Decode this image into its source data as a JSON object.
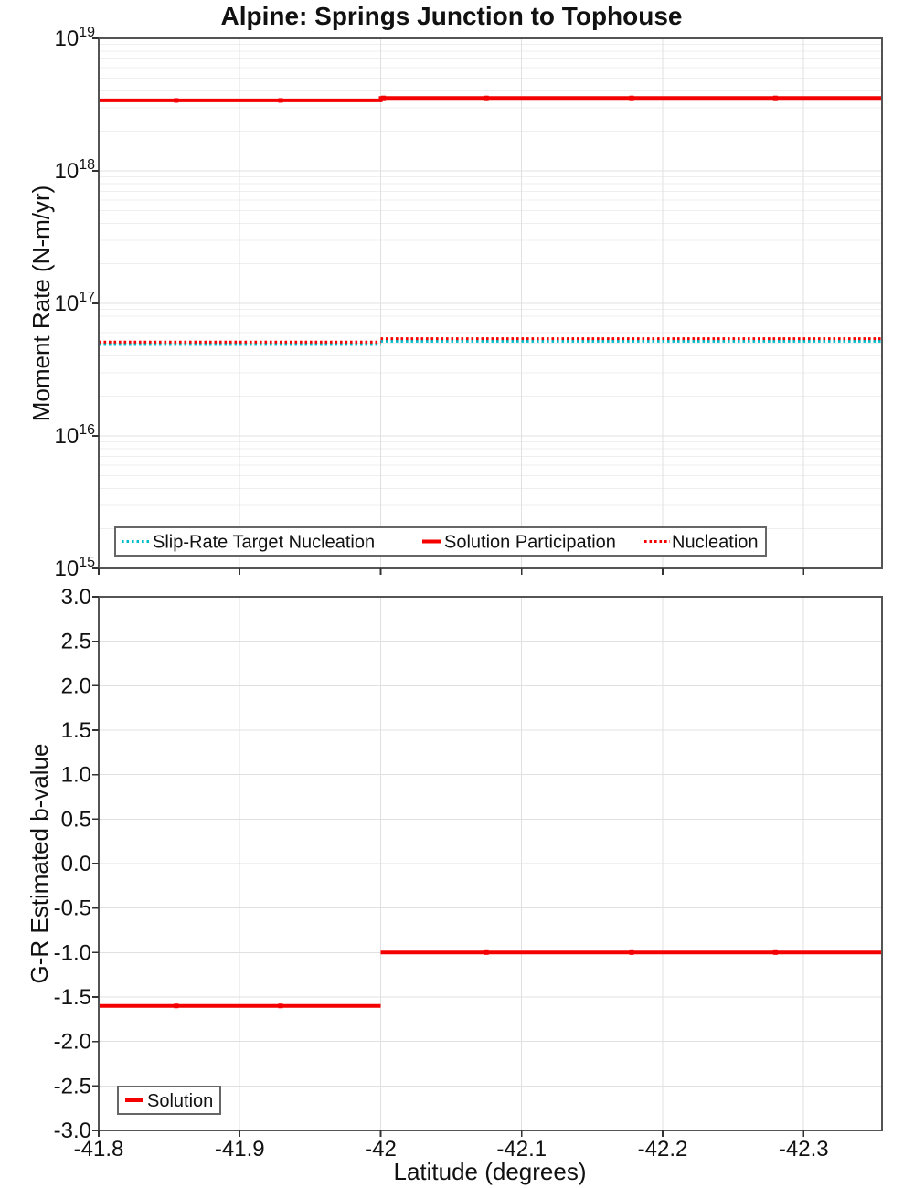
{
  "chart_data": {
    "title": "Alpine: Springs Junction to Tophouse",
    "xaxis": {
      "label": "Latitude (degrees)",
      "lim": [
        -41.8,
        -42.3556
      ],
      "ticks": {
        "values": [
          -41.8,
          -41.9,
          -42.0,
          -42.1,
          -42.2,
          -42.3
        ],
        "labels": [
          "-41.8",
          "-41.9",
          "-42",
          "-42.1",
          "-42.2",
          "-42.3"
        ]
      },
      "inverted": true
    },
    "colors": {
      "red": "#f40000",
      "cyan": "#00bcc8",
      "grid_minor": "#efefef",
      "grid_major": "#e0e0e0",
      "border": "#545454",
      "legend_border": "#666666"
    },
    "charts": [
      {
        "type": "line",
        "ylabel": "Moment Rate (N-m/yr)",
        "yscale": "log",
        "ylim_exp": [
          15,
          19
        ],
        "ytick_base": "10",
        "ytick_exps": [
          19,
          18,
          17,
          16,
          15
        ],
        "grid_minor": true,
        "series": [
          {
            "name": "Slip-Rate Target Nucleation",
            "color": "#00bcc8",
            "dash": "dotted",
            "width": 3,
            "offset": 1.4,
            "segments": [
              [
                [
                  -41.8,
                  5e+16
                ],
                [
                  -42.0,
                  5e+16
                ]
              ],
              [
                [
                  -42.0,
                  5.3e+16
                ],
                [
                  -42.3556,
                  5.3e+16
                ]
              ]
            ],
            "markers": []
          },
          {
            "name": "Nucleation",
            "color": "#f40000",
            "dash": "dotted",
            "width": 3,
            "offset": -1.4,
            "segments": [
              [
                [
                  -41.8,
                  5e+16
                ],
                [
                  -42.0,
                  5e+16
                ]
              ],
              [
                [
                  -42.0,
                  5.3e+16
                ],
                [
                  -42.3556,
                  5.3e+16
                ]
              ]
            ],
            "markers": []
          },
          {
            "name": "Solution Participation",
            "color": "#f40000",
            "dash": "solid",
            "width": 4,
            "offset": 0,
            "segments": [
              [
                [
                  -41.8,
                  3.4e+18
                ],
                [
                  -42.0,
                  3.4e+18
                ],
                [
                  -42.0,
                  3.55e+18
                ],
                [
                  -42.3556,
                  3.55e+18
                ]
              ]
            ],
            "markers": [
              [
                -41.855,
                3.4e+18
              ],
              [
                -41.929,
                3.4e+18
              ],
              [
                -42.002,
                3.55e+18
              ],
              [
                -42.075,
                3.55e+18
              ],
              [
                -42.178,
                3.55e+18
              ],
              [
                -42.28,
                3.55e+18
              ]
            ]
          }
        ],
        "legend": [
          "Slip-Rate Target Nucleation",
          "Solution Participation",
          "Nucleation"
        ]
      },
      {
        "type": "line",
        "ylabel": "G-R Estimated b-value",
        "yscale": "linear",
        "ylim": [
          -3.0,
          3.0
        ],
        "grid_minor": false,
        "yticks": {
          "values": [
            3.0,
            2.5,
            2.0,
            1.5,
            1.0,
            0.5,
            0.0,
            -0.5,
            -1.0,
            -1.5,
            -2.0,
            -2.5,
            -3.0
          ],
          "labels": [
            "3.0",
            "2.5",
            "2.0",
            "1.5",
            "1.0",
            "0.5",
            "0.0",
            "-0.5",
            "-1.0",
            "-1.5",
            "-2.0",
            "-2.5",
            "-3.0"
          ]
        },
        "series": [
          {
            "name": "Solution",
            "color": "#f40000",
            "dash": "solid",
            "width": 4,
            "offset": 0,
            "segments": [
              [
                [
                  -41.8,
                  -1.6
                ],
                [
                  -42.0,
                  -1.6
                ]
              ],
              [
                [
                  -42.0,
                  -1.0
                ],
                [
                  -42.3556,
                  -1.0
                ]
              ]
            ],
            "markers": [
              [
                -41.855,
                -1.6
              ],
              [
                -41.929,
                -1.6
              ],
              [
                -42.075,
                -1.0
              ],
              [
                -42.178,
                -1.0
              ],
              [
                -42.28,
                -1.0
              ]
            ]
          }
        ],
        "legend": [
          "Solution"
        ]
      }
    ]
  }
}
